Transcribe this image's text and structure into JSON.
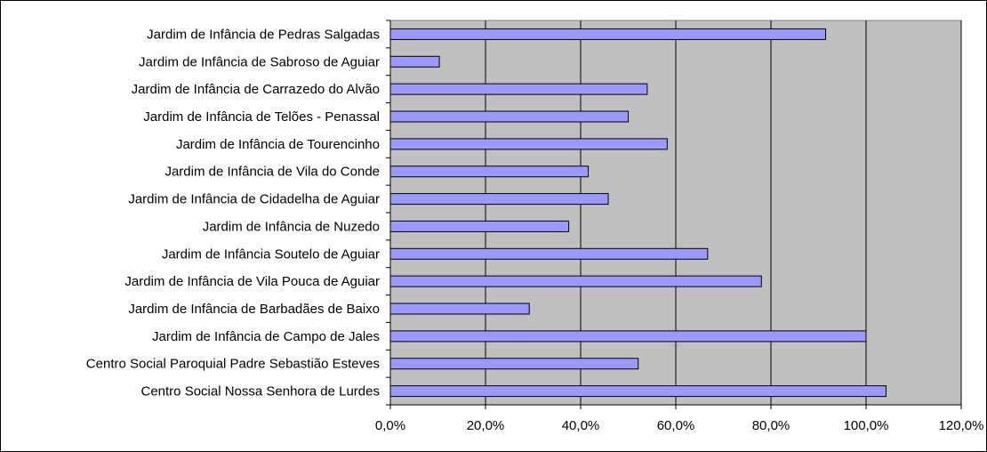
{
  "chart_data": {
    "type": "bar",
    "orientation": "horizontal",
    "title": "",
    "xlabel": "",
    "ylabel": "",
    "categories": [
      "Jardim de Infância de Pedras Salgadas",
      "Jardim de Infância de Sabroso de Aguiar",
      "Jardim de Infância de Carrazedo do Alvão",
      "Jardim de Infância de Telões - Penassal",
      "Jardim de Infância de Tourencinho",
      "Jardim de Infância de Vila do Conde",
      "Jardim de Infância de Cidadelha de Aguiar",
      "Jardim de Infância de Nuzedo",
      "Jardim de Infância Soutelo de Aguiar",
      "Jardim de Infância de Vila Pouca de Aguiar",
      "Jardim de Infância de Barbadães de Baixo",
      "Jardim de Infância de Campo de Jales",
      "Centro Social Paroquial Padre Sebastião Esteves",
      "Centro Social Nossa Senhora de Lurdes"
    ],
    "values": [
      91.5,
      10.3,
      54.0,
      50.0,
      58.2,
      41.6,
      45.8,
      37.5,
      66.7,
      78.0,
      29.2,
      100.0,
      52.1,
      104.2
    ],
    "xlim": [
      0,
      120
    ],
    "xticks": [
      "0,0%",
      "20,0%",
      "40,0%",
      "60,0%",
      "80,0%",
      "100,0%",
      "120,0%"
    ],
    "xtick_values": [
      0,
      20,
      40,
      60,
      80,
      100,
      120
    ],
    "grid": "vertical",
    "legend": "none",
    "colors": {
      "bar_fill": "#9999ff",
      "bar_stroke": "#000000",
      "plot_background": "#c0c0c0",
      "grid": "#000000"
    }
  }
}
